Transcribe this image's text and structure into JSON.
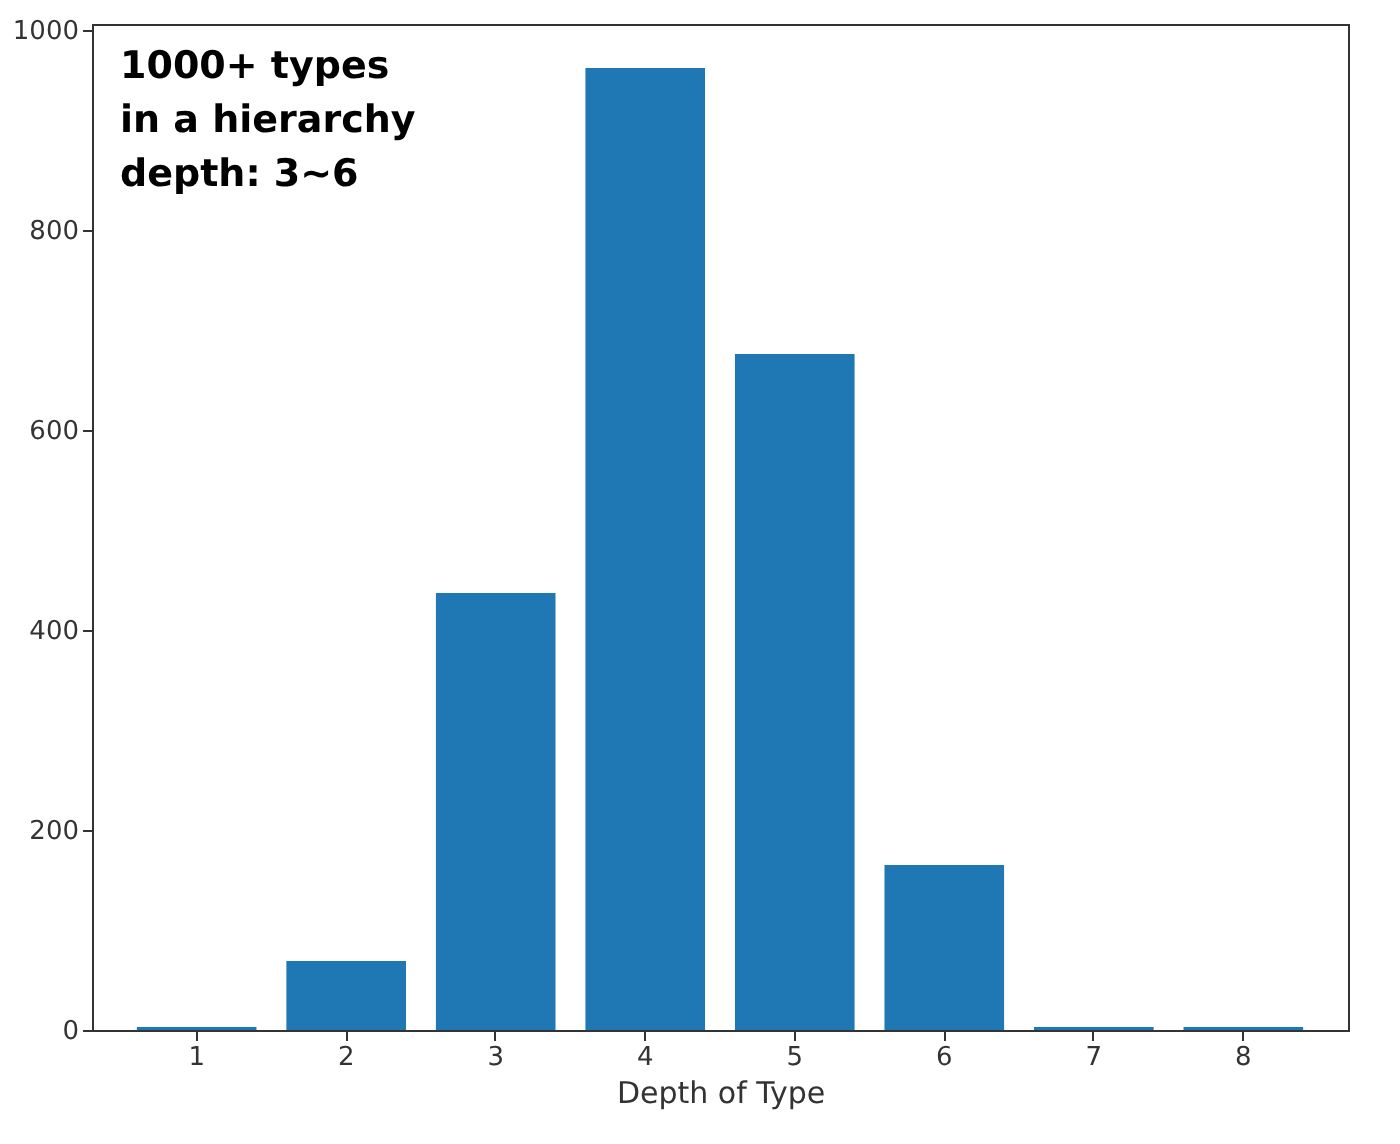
{
  "chart_data": {
    "type": "bar",
    "xlabel": "Depth of Type",
    "categories": [
      "1",
      "2",
      "3",
      "4",
      "5",
      "6",
      "7",
      "8"
    ],
    "values": [
      3,
      69,
      437,
      962,
      676,
      165,
      3,
      3
    ],
    "color": "#1f77b4",
    "ylim": [
      0,
      1006
    ],
    "yticks": [
      0,
      200,
      400,
      600,
      800,
      1000
    ],
    "grid": false,
    "annotations": [
      "1000+ types\nin a hierarchy\ndepth: 3~6"
    ]
  }
}
